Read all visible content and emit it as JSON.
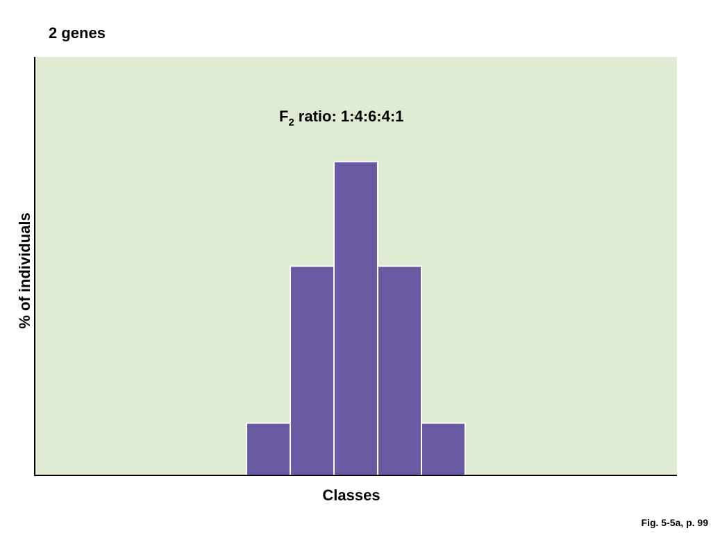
{
  "chart_data": {
    "type": "bar",
    "title": "2 genes",
    "annotation": {
      "text": "F",
      "subscript": "2",
      "rest": "ratio: 1:4:6:4:1"
    },
    "xlabel": "Classes",
    "ylabel": "% of individuals",
    "categories": [
      null,
      null,
      null,
      null,
      null
    ],
    "values": [
      6.25,
      25,
      37.5,
      25,
      6.25
    ],
    "color": "#6a5aa3",
    "background": "#dfebd3",
    "ylim": [
      0,
      50
    ],
    "grid": false,
    "source": "Fig. 5-5a, p. 99"
  }
}
